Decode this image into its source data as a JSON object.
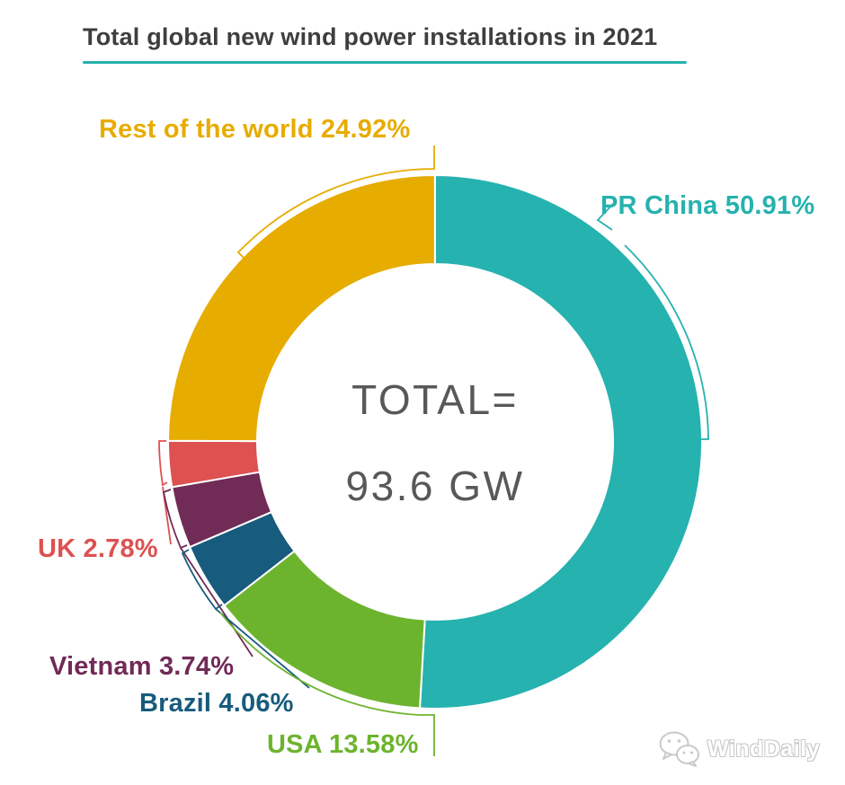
{
  "header": {
    "title": "Total global new wind power installations in 2021"
  },
  "center": {
    "line1": "TOTAL=",
    "line2": "93.6 GW"
  },
  "watermark": {
    "name": "WindDaily",
    "icon": "wechat-icon"
  },
  "colors": {
    "title_text": "#3e3e40",
    "underline": "#26b2af",
    "center_text": "#58585a",
    "background": "#ffffff"
  },
  "chart_data": {
    "type": "pie",
    "subtype": "donut",
    "title": "Total global new wind power installations in 2021",
    "total_label": "TOTAL=",
    "total_value": "93.6 GW",
    "total_gw": 93.6,
    "unit": "GW",
    "direction": "clockwise",
    "start_angle_deg": 0,
    "legend_position": "outside-callouts",
    "slices": [
      {
        "id": "pr-china",
        "label": "PR China",
        "pct": 50.91,
        "display": "PR China 50.91%",
        "color": "#26b2af"
      },
      {
        "id": "usa",
        "label": "USA",
        "pct": 13.58,
        "display": "USA 13.58%",
        "color": "#6db42e"
      },
      {
        "id": "brazil",
        "label": "Brazil",
        "pct": 4.06,
        "display": "Brazil 4.06%",
        "color": "#175b7d"
      },
      {
        "id": "vietnam",
        "label": "Vietnam",
        "pct": 3.74,
        "display": "Vietnam 3.74%",
        "color": "#702b57"
      },
      {
        "id": "uk",
        "label": "UK",
        "pct": 2.78,
        "display": "UK 2.78%",
        "color": "#dd5151"
      },
      {
        "id": "rest-of-the-world",
        "label": "Rest of the world",
        "pct": 24.92,
        "display": "Rest of the world 24.92%",
        "color": "#e7ac00"
      }
    ]
  }
}
